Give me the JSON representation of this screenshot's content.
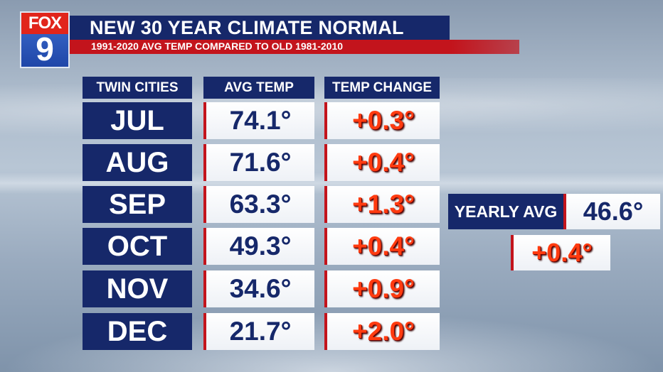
{
  "logo": {
    "brand": "FOX",
    "channel": "9"
  },
  "header": {
    "title": "NEW 30 YEAR CLIMATE NORMAL",
    "subtitle": "1991-2020 AVG TEMP COMPARED TO OLD 1981-2010"
  },
  "table": {
    "columns": [
      "TWIN CITIES",
      "AVG TEMP",
      "TEMP CHANGE"
    ],
    "rows": [
      {
        "month": "JUL",
        "avg": "74.1°",
        "change": "+0.3°"
      },
      {
        "month": "AUG",
        "avg": "71.6°",
        "change": "+0.4°"
      },
      {
        "month": "SEP",
        "avg": "63.3°",
        "change": "+1.3°"
      },
      {
        "month": "OCT",
        "avg": "49.3°",
        "change": "+0.4°"
      },
      {
        "month": "NOV",
        "avg": "34.6°",
        "change": "+0.9°"
      },
      {
        "month": "DEC",
        "avg": "21.7°",
        "change": "+2.0°"
      }
    ]
  },
  "yearly": {
    "label": "YEARLY AVG",
    "value": "46.6°",
    "change": "+0.4°"
  },
  "colors": {
    "navy": "#16286a",
    "red": "#c3141c",
    "change_text": "#ff3b10"
  }
}
